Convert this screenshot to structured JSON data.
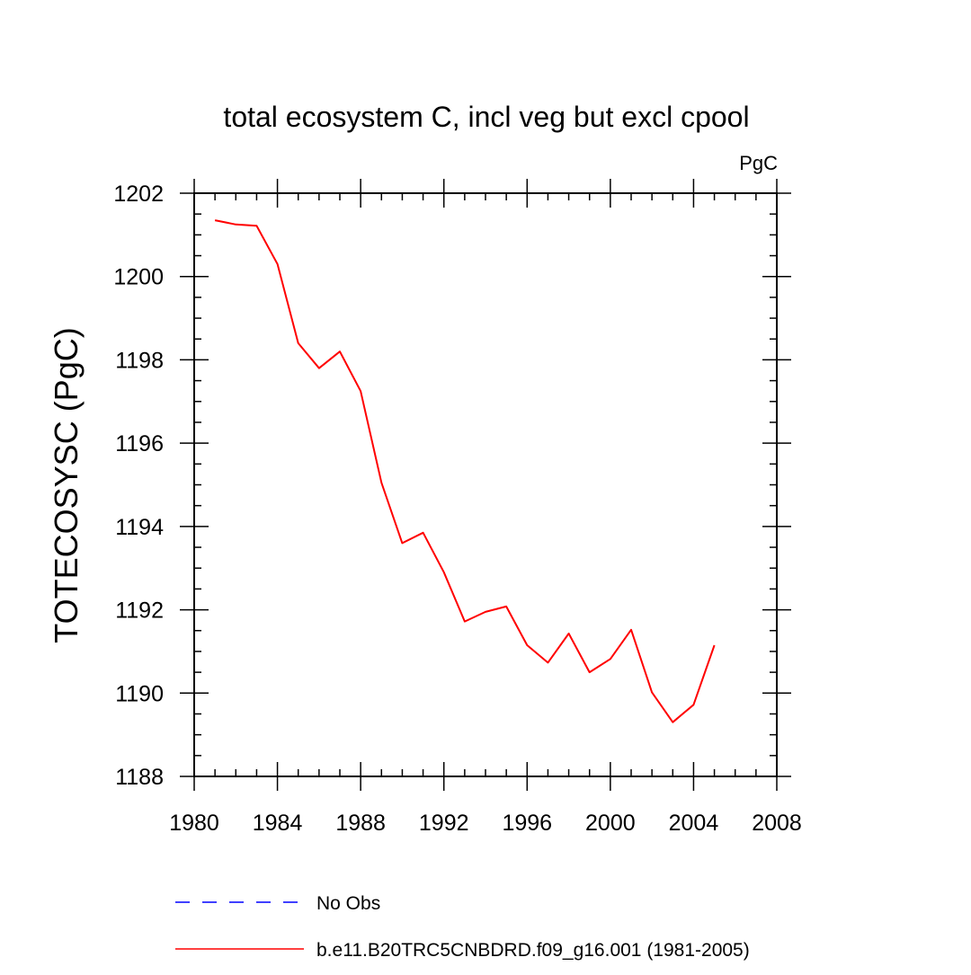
{
  "chart_data": {
    "type": "line",
    "title": "total ecosystem C, incl veg but excl cpool",
    "units_label": "PgC",
    "ylabel": "TOTECOSYSC  (PgC)",
    "xlabel": "",
    "xlim": [
      1980,
      2008
    ],
    "ylim": [
      1188,
      1202
    ],
    "x_ticks": [
      1980,
      1984,
      1988,
      1992,
      1996,
      2000,
      2004,
      2008
    ],
    "y_ticks": [
      1188,
      1190,
      1192,
      1194,
      1196,
      1198,
      1200,
      1202
    ],
    "x_minor_step": 1,
    "y_minor_step": 0.5,
    "grid": false,
    "legend_position": "bottom",
    "series": [
      {
        "name": "b.e11.B20TRC5CNBDRD.f09_g16.001 (1981-2005)",
        "color": "#ff0000",
        "line_style": "solid",
        "x": [
          1981,
          1982,
          1983,
          1984,
          1985,
          1986,
          1987,
          1988,
          1989,
          1990,
          1991,
          1992,
          1993,
          1994,
          1995,
          1996,
          1997,
          1998,
          1999,
          2000,
          2001,
          2002,
          2003,
          2004,
          2005
        ],
        "y": [
          1201.35,
          1201.25,
          1201.22,
          1200.3,
          1198.4,
          1197.8,
          1198.2,
          1197.25,
          1195.05,
          1193.6,
          1193.85,
          1192.9,
          1191.72,
          1191.95,
          1192.08,
          1191.15,
          1190.73,
          1191.43,
          1190.5,
          1190.82,
          1191.52,
          1190.02,
          1189.3,
          1189.72,
          1191.15
        ]
      }
    ],
    "legend": [
      {
        "label": "No Obs",
        "color": "#0000ff",
        "line_style": "dashed"
      },
      {
        "label": "b.e11.B20TRC5CNBDRD.f09_g16.001 (1981-2005)",
        "color": "#ff0000",
        "line_style": "solid"
      }
    ]
  }
}
